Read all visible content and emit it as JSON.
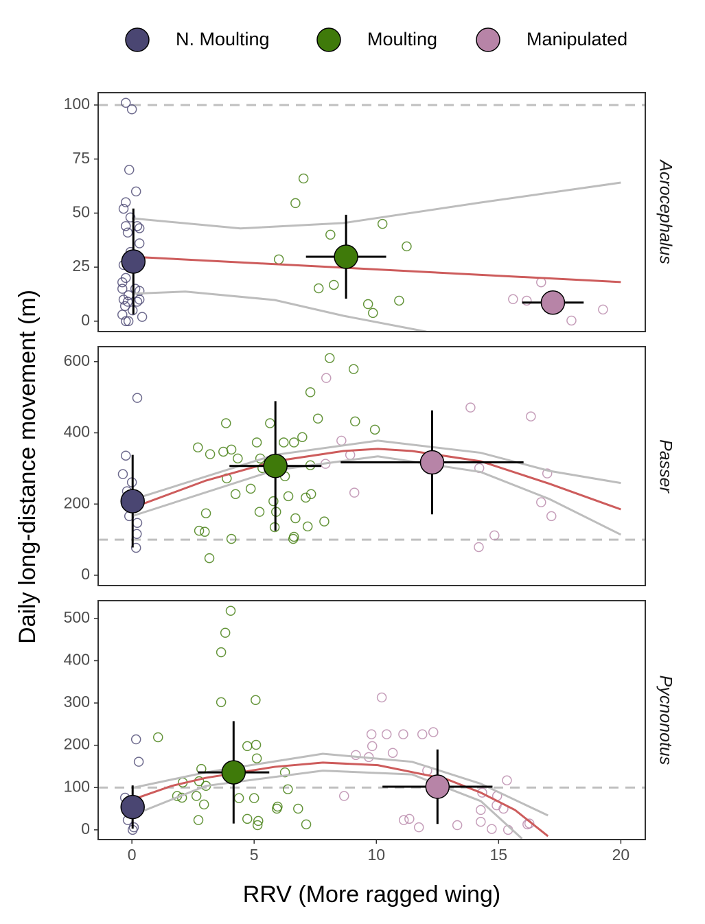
{
  "chart_data": [
    {
      "type": "scatter",
      "facet": "Acrocephalus",
      "ylabel": "Daily long-distance movement (m)",
      "xlim": [
        -1.38,
        21.0
      ],
      "ylim": [
        -4.8,
        105.7
      ],
      "yticks": [
        0,
        25,
        50,
        75,
        100
      ],
      "hline": 100,
      "hline_color": "#c0c0c0",
      "series": [
        {
          "name": "N. Moulting",
          "color": "#4a4672",
          "x": [
            -0.25,
            0,
            -0.11,
            0.17,
            -0.25,
            -0.34,
            -0.06,
            -0.25,
            0.22,
            -0.17,
            0.31,
            0.31,
            -0.06,
            -0.34,
            -0.25,
            -0.39,
            -0.39,
            0.14,
            0.31,
            -0.14,
            -0.34,
            0.31,
            -0.17,
            0.22,
            -0.28,
            0.03,
            0.42,
            -0.25,
            -0.14,
            -0.39
          ],
          "values": [
            101,
            98,
            70,
            60,
            55,
            52,
            48,
            44,
            44,
            41,
            43,
            36,
            32,
            26,
            20,
            18,
            15,
            15,
            14,
            12,
            10,
            10,
            9,
            9,
            7,
            5,
            2,
            0,
            0,
            3
          ],
          "mean": {
            "x": 0.06,
            "y": 27.6,
            "xerr": 0,
            "yerr": 24.5
          }
        },
        {
          "name": "Moulting",
          "color": "#3f7a0a",
          "x": [
            7.02,
            6.69,
            8.12,
            10.25,
            11.24,
            6.01,
            8.26,
            7.64,
            10.93,
            9.66,
            9.86
          ],
          "values": [
            66,
            54.6,
            40,
            45,
            34.6,
            28.6,
            16.8,
            15.2,
            9.5,
            7.9,
            3.8
          ],
          "mean": {
            "x": 8.76,
            "y": 29.8,
            "xerr": 1.64,
            "yerr": 19.4
          }
        },
        {
          "name": "Manipulated",
          "color": "#b784a7",
          "x": [
            16.74,
            15.59,
            16.15,
            17.98,
            19.27
          ],
          "values": [
            18,
            10.2,
            9.5,
            0.3,
            5.4
          ],
          "mean": {
            "x": 17.22,
            "y": 8.6,
            "xerr": 1.26,
            "yerr": 0
          }
        }
      ],
      "fit": {
        "color": "#cd5c5c",
        "x": [
          0,
          20
        ],
        "values": [
          29.8,
          18.1
        ]
      },
      "ci_upper": {
        "color": "#bdbdbd",
        "x": [
          0,
          4.44,
          8.65,
          14.27,
          20
        ],
        "values": [
          47.6,
          42.9,
          45.4,
          54.9,
          64.1
        ]
      },
      "ci_lower": {
        "color": "#bdbdbd",
        "x": [
          0,
          2.19,
          5.84,
          8.65,
          12.02,
          14
        ],
        "values": [
          12.7,
          13.7,
          9.8,
          2.5,
          -4.8,
          -12
        ]
      }
    },
    {
      "type": "scatter",
      "facet": "Passer",
      "xlim": [
        -1.38,
        21.0
      ],
      "ylim": [
        -29,
        642
      ],
      "yticks": [
        0,
        200,
        400,
        600
      ],
      "hline": 100,
      "hline_color": "#c0c0c0",
      "series": [
        {
          "name": "N. Moulting",
          "color": "#4a4672",
          "x": [
            0.22,
            -0.25,
            -0.37,
            0,
            -0.2,
            0.08,
            -0.11,
            0.22,
            0.2,
            0.17
          ],
          "values": [
            498,
            336,
            284,
            261,
            236,
            189,
            166,
            147,
            116,
            77
          ],
          "mean": {
            "x": 0.03,
            "y": 208,
            "xerr": 0,
            "yerr": 130
          }
        },
        {
          "name": "Moulting",
          "color": "#3f7a0a",
          "x": [
            8.09,
            9.07,
            7.3,
            7.61,
            9.13,
            9.94,
            3.85,
            5.65,
            5.11,
            6.21,
            6.63,
            6.97,
            2.7,
            3.2,
            3.74,
            4.07,
            4.33,
            3.88,
            5.25,
            5.34,
            6.26,
            7.3,
            4.86,
            4.24,
            5.22,
            5.79,
            5.9,
            5.84,
            6.4,
            7.11,
            7.33,
            6.69,
            7.19,
            7.87,
            2.75,
            2.98,
            3.03,
            4.07,
            3.17,
            6.6,
            6.63
          ],
          "values": [
            610,
            579,
            514,
            440,
            432,
            409,
            427,
            427,
            373,
            373,
            373,
            388,
            359,
            340,
            347,
            353,
            328,
            272,
            328,
            301,
            278,
            309,
            243,
            228,
            178,
            208,
            178,
            135,
            222,
            218,
            228,
            160,
            137,
            151,
            125,
            122,
            174,
            102,
            48,
            102,
            108
          ],
          "mean": {
            "x": 5.87,
            "y": 307,
            "xerr": 1.88,
            "yerr": 182
          }
        },
        {
          "name": "Manipulated",
          "color": "#b784a7",
          "x": [
            7.95,
            8.57,
            8.93,
            7.92,
            9.1,
            13.85,
            16.32,
            14.21,
            16.99,
            16.74,
            17.16,
            14.83,
            14.19
          ],
          "values": [
            554,
            378,
            338,
            313,
            232,
            471,
            446,
            301,
            286,
            205,
            166,
            112,
            79
          ],
          "mean": {
            "x": 12.28,
            "y": 317,
            "xerr": 3.74,
            "yerr": 146
          }
        }
      ],
      "fit": {
        "color": "#cd5c5c",
        "x": [
          0,
          3.03,
          5.84,
          8.65,
          10.06,
          11.46,
          14.27,
          17.08,
          20
        ],
        "values": [
          189,
          266,
          320,
          349,
          355,
          349,
          320,
          257,
          185
        ]
      },
      "ci_upper": {
        "color": "#bdbdbd",
        "x": [
          0,
          5.84,
          10.06,
          14.27,
          17.08,
          20
        ],
        "values": [
          212,
          338,
          378,
          344,
          293,
          259
        ]
      },
      "ci_lower": {
        "color": "#bdbdbd",
        "x": [
          0,
          5.84,
          10.06,
          14.27,
          17.08,
          20
        ],
        "values": [
          166,
          295,
          334,
          290,
          214,
          114
        ]
      }
    },
    {
      "type": "scatter",
      "facet": "Pycnonotus",
      "xlabel": "RRV (More ragged wing)",
      "xlim": [
        -1.38,
        21.0
      ],
      "xticks": [
        0,
        5,
        10,
        15,
        20
      ],
      "ylim": [
        -23,
        542
      ],
      "yticks": [
        0,
        100,
        200,
        300,
        400,
        500
      ],
      "hline": 100,
      "hline_color": "#c0c0c0",
      "series": [
        {
          "name": "N. Moulting",
          "color": "#4a4672",
          "x": [
            0.17,
            0.28,
            -0.28,
            -0.06,
            -0.17,
            0.08,
            0.03,
            -0.17
          ],
          "values": [
            214,
            161,
            76,
            55,
            23,
            6,
            0,
            63
          ],
          "mean": {
            "x": 0.03,
            "y": 54,
            "xerr": 0,
            "yerr": 51
          }
        },
        {
          "name": "Moulting",
          "color": "#3f7a0a",
          "x": [
            4.04,
            3.82,
            3.65,
            3.65,
            5.06,
            1.07,
            4.72,
            5.08,
            5.11,
            2.84,
            2.08,
            2.75,
            3.03,
            2.05,
            1.85,
            2.64,
            2.95,
            6.26,
            6.38,
            4.38,
            5,
            5.96,
            5.93,
            6.8,
            2.72,
            4.72,
            5.17,
            5.14,
            7.13
          ],
          "values": [
            518,
            466,
            420,
            302,
            307,
            219,
            198,
            201,
            169,
            144,
            112,
            115,
            104,
            76,
            80,
            80,
            60,
            136,
            96,
            75,
            75,
            55,
            50,
            50,
            23,
            26,
            21,
            11,
            13
          ],
          "mean": {
            "x": 4.16,
            "y": 136,
            "xerr": 1.46,
            "yerr": 121
          }
        },
        {
          "name": "Manipulated",
          "color": "#b784a7",
          "x": [
            10.22,
            9.8,
            10.42,
            11.1,
            9.83,
            10.67,
            9.16,
            9.69,
            11.88,
            12.33,
            12.08,
            8.68,
            14.33,
            14.94,
            15.34,
            14.92,
            15.2,
            11.12,
            11.35,
            11.74,
            14.27,
            14.27,
            14.72,
            15.39,
            16.18,
            16.26,
            13.31
          ],
          "values": [
            313,
            226,
            226,
            226,
            198,
            182,
            177,
            172,
            226,
            231,
            140,
            80,
            88,
            80,
            117,
            58,
            50,
            23,
            26,
            6,
            47,
            19,
            2,
            0,
            13,
            15,
            11
          ],
          "mean": {
            "x": 12.5,
            "y": 102,
            "xerr": 2.25,
            "yerr": 88
          }
        }
      ],
      "fit": {
        "color": "#cd5c5c",
        "x": [
          0,
          1.63,
          3.03,
          5.84,
          7.81,
          10.06,
          12.87,
          14.27,
          15.67,
          17.02
        ],
        "values": [
          71,
          104,
          123,
          149,
          159,
          153,
          120,
          88,
          47,
          -15
        ]
      },
      "ci_upper": {
        "color": "#bdbdbd",
        "x": [
          0,
          3.03,
          7.81,
          11.46,
          14.27,
          17.02
        ],
        "values": [
          99,
          136,
          180,
          161,
          109,
          34
        ]
      },
      "ci_lower": {
        "color": "#bdbdbd",
        "x": [
          0,
          3.03,
          7.81,
          11.46,
          14.27,
          15.96
        ],
        "values": [
          34,
          104,
          140,
          131,
          68,
          -21
        ]
      }
    }
  ]
}
